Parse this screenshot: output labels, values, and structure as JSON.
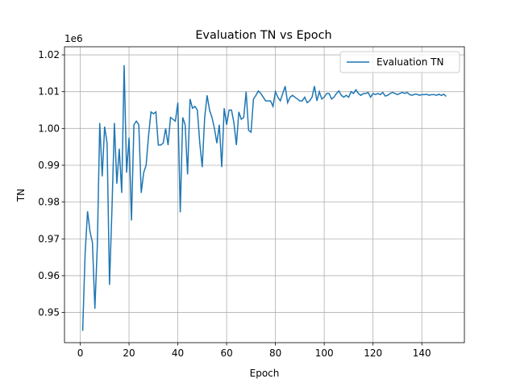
{
  "chart_data": {
    "type": "line",
    "title": "Evaluation TN vs Epoch",
    "xlabel": "Epoch",
    "ylabel": "TN",
    "y_offset_label": "1e6",
    "x": [
      1,
      2,
      3,
      4,
      5,
      6,
      7,
      8,
      9,
      10,
      11,
      12,
      13,
      14,
      15,
      16,
      17,
      18,
      19,
      20,
      21,
      22,
      23,
      24,
      25,
      26,
      27,
      28,
      29,
      30,
      31,
      32,
      33,
      34,
      35,
      36,
      37,
      38,
      39,
      40,
      41,
      42,
      43,
      44,
      45,
      46,
      47,
      48,
      49,
      50,
      51,
      52,
      53,
      54,
      55,
      56,
      57,
      58,
      59,
      60,
      61,
      62,
      63,
      64,
      65,
      66,
      67,
      68,
      69,
      70,
      71,
      72,
      73,
      74,
      75,
      76,
      77,
      78,
      79,
      80,
      81,
      82,
      83,
      84,
      85,
      86,
      87,
      88,
      89,
      90,
      91,
      92,
      93,
      94,
      95,
      96,
      97,
      98,
      99,
      100,
      101,
      102,
      103,
      104,
      105,
      106,
      107,
      108,
      109,
      110,
      111,
      112,
      113,
      114,
      115,
      116,
      117,
      118,
      119,
      120,
      121,
      122,
      123,
      124,
      125,
      126,
      127,
      128,
      129,
      130,
      131,
      132,
      133,
      134,
      135,
      136,
      137,
      138,
      139,
      140,
      141,
      142,
      143,
      144,
      145,
      146,
      147,
      148,
      149,
      150
    ],
    "series": [
      {
        "name": "Evaluation TN",
        "color": "#1f77b4",
        "values": [
          0.945,
          0.966,
          0.9775,
          0.972,
          0.969,
          0.951,
          0.968,
          1.0015,
          0.987,
          1.0005,
          0.996,
          0.9575,
          0.978,
          1.0015,
          0.985,
          0.9945,
          0.9825,
          1.0172,
          0.988,
          0.9975,
          0.975,
          1.001,
          1.002,
          1.001,
          0.9825,
          0.988,
          0.99,
          0.998,
          1.0045,
          1.004,
          1.0045,
          0.9955,
          0.9955,
          0.996,
          1.0,
          0.9955,
          1.003,
          1.0025,
          1.002,
          1.007,
          0.9772,
          1.003,
          1.001,
          0.9875,
          1.008,
          1.0055,
          1.006,
          1.005,
          0.996,
          0.9895,
          1.003,
          1.009,
          1.005,
          1.003,
          1.0,
          0.996,
          1.001,
          0.9895,
          1.0055,
          1.001,
          1.005,
          1.005,
          1.0015,
          0.9955,
          1.0045,
          1.0025,
          1.003,
          1.01,
          0.9995,
          0.999,
          1.008,
          1.009,
          1.0102,
          1.0095,
          1.0085,
          1.0075,
          1.0075,
          1.0075,
          1.006,
          1.01,
          1.0085,
          1.0075,
          1.0095,
          1.0115,
          1.007,
          1.0085,
          1.009,
          1.0085,
          1.008,
          1.0075,
          1.0075,
          1.0085,
          1.007,
          1.0075,
          1.0085,
          1.0115,
          1.0075,
          1.01,
          1.008,
          1.0085,
          1.0095,
          1.0095,
          1.008,
          1.0085,
          1.0095,
          1.0102,
          1.009,
          1.0085,
          1.009,
          1.0085,
          1.01,
          1.0095,
          1.0105,
          1.0095,
          1.009,
          1.0095,
          1.0095,
          1.0098,
          1.0085,
          1.0095,
          1.0092,
          1.0095,
          1.0092,
          1.0098,
          1.0088,
          1.009,
          1.0095,
          1.0098,
          1.0095,
          1.0092,
          1.0095,
          1.0098,
          1.0095,
          1.0098,
          1.0092,
          1.009,
          1.0093,
          1.0093,
          1.009,
          1.0092,
          1.0092,
          1.0093,
          1.009,
          1.0092,
          1.0092,
          1.009,
          1.0093,
          1.009,
          1.0093,
          1.0087
        ]
      }
    ],
    "xlim": [
      -6.45,
      157.45
    ],
    "xticks": [
      0,
      20,
      40,
      60,
      80,
      100,
      120,
      140
    ],
    "ylim": [
      0.9418,
      1.0222
    ],
    "yticks": [
      0.95,
      0.96,
      0.97,
      0.98,
      0.99,
      {
        "value": 1,
        "label": "1.00"
      },
      1.01,
      1.02
    ],
    "grid": true,
    "legend": "upper right"
  }
}
